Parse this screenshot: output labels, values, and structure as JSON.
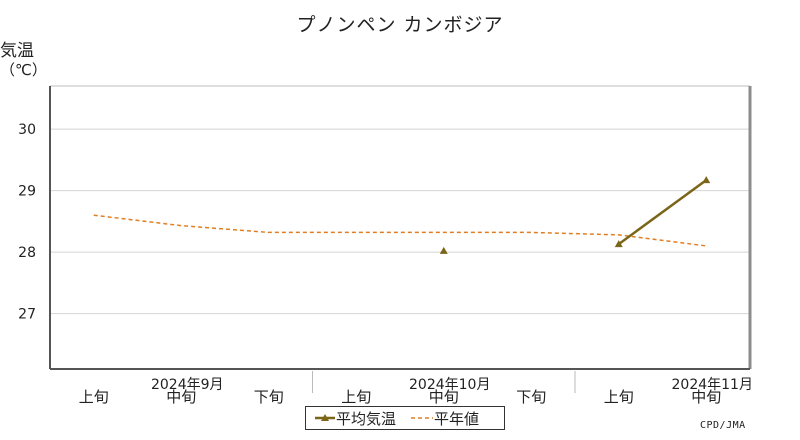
{
  "chart_data": {
    "type": "line",
    "title": "プノンペン カンボジア",
    "ylabel": "気温",
    "yunit": "（℃）",
    "ylim": [
      26.1,
      30.7
    ],
    "yticks": [
      27,
      28,
      29,
      30
    ],
    "categories": [
      "上旬",
      "中旬",
      "下旬",
      "上旬",
      "中旬",
      "下旬",
      "上旬",
      "中旬"
    ],
    "month_labels": [
      {
        "label": "2024年9月",
        "category_index": 1
      },
      {
        "label": "2024年10月",
        "category_index": 4
      },
      {
        "label": "2024年11月",
        "category_index": 7
      }
    ],
    "grid": true,
    "legend_position": "bottom",
    "series": [
      {
        "name": "平均気温",
        "style": "solid-triangle",
        "color": "#7a6518",
        "values": [
          null,
          null,
          null,
          null,
          28.02,
          null,
          28.13,
          29.17
        ]
      },
      {
        "name": "平年値",
        "style": "dashed",
        "color": "#e07f22",
        "values": [
          28.6,
          28.43,
          28.32,
          28.32,
          28.32,
          28.32,
          28.28,
          28.1
        ]
      }
    ]
  },
  "credit": "CPD/JMA"
}
